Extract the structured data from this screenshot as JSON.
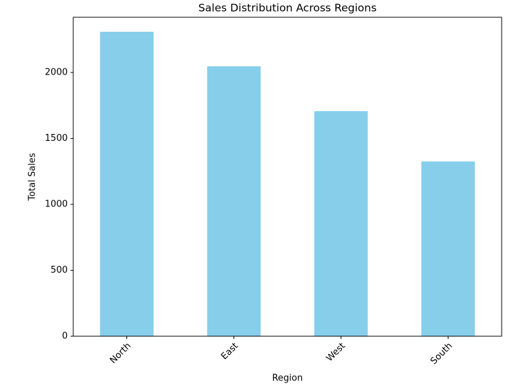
{
  "chart_data": {
    "type": "bar",
    "title": "Sales Distribution Across Regions",
    "x_label": "Region",
    "y_label": "Total Sales",
    "categories": [
      "North",
      "East",
      "West",
      "South"
    ],
    "values": [
      2309,
      2047,
      1707,
      1325
    ],
    "color": "#87ceeb",
    "ylim": [
      0,
      2419
    ],
    "yticks": [
      0,
      500,
      1000,
      1500,
      2000
    ],
    "grid": false
  }
}
